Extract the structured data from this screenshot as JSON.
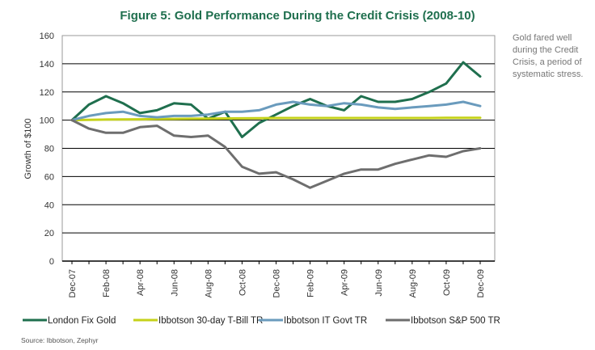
{
  "chart_data": {
    "type": "line",
    "title": "Figure 5: Gold Performance During the Credit Crisis (2008-10)",
    "ylabel": "Growth of $100",
    "xlabel": "",
    "ylim": [
      0,
      160
    ],
    "yticks": [
      0,
      20,
      40,
      60,
      80,
      100,
      120,
      140,
      160
    ],
    "x_tick_labels": [
      "Dec-07",
      "Feb-08",
      "Apr-08",
      "Jun-08",
      "Aug-08",
      "Oct-08",
      "Dec-08",
      "Feb-09",
      "Apr-09",
      "Jun-09",
      "Aug-09",
      "Oct-09",
      "Dec-09"
    ],
    "x": [
      "Dec-07",
      "Jan-08",
      "Feb-08",
      "Mar-08",
      "Apr-08",
      "May-08",
      "Jun-08",
      "Jul-08",
      "Aug-08",
      "Sep-08",
      "Oct-08",
      "Nov-08",
      "Dec-08",
      "Jan-09",
      "Feb-09",
      "Mar-09",
      "Apr-09",
      "May-09",
      "Jun-09",
      "Jul-09",
      "Aug-09",
      "Sep-09",
      "Oct-09",
      "Nov-09",
      "Dec-09"
    ],
    "grid": true,
    "legend_position": "bottom",
    "annotation": "Gold fared well during the Credit Crisis, a period of systematic stress.",
    "source": "Source: Ibbotson, Zephyr",
    "series": [
      {
        "name": "London Fix Gold",
        "color": "#1f6f4e",
        "values": [
          100,
          111,
          117,
          112,
          105,
          107,
          112,
          111,
          101,
          106,
          88,
          98,
          104,
          110,
          115,
          110,
          107,
          117,
          113,
          113,
          115,
          120,
          126,
          141,
          131
        ]
      },
      {
        "name": "Ibbotson 30-day T-Bill TR",
        "color": "#c5d21a",
        "values": [
          100,
          100.2,
          100.4,
          100.5,
          100.6,
          100.8,
          100.9,
          101,
          101.1,
          101.2,
          101.3,
          101.4,
          101.5,
          101.5,
          101.5,
          101.5,
          101.5,
          101.5,
          101.5,
          101.5,
          101.5,
          101.5,
          101.6,
          101.6,
          101.6
        ]
      },
      {
        "name": "Ibbotson IT Govt TR",
        "color": "#6a9bbd",
        "values": [
          100,
          103,
          105,
          106,
          103,
          102,
          103,
          103,
          104,
          106,
          106,
          107,
          111,
          113,
          111,
          110,
          112,
          111,
          109,
          108,
          109,
          110,
          111,
          113,
          110
        ]
      },
      {
        "name": "Ibbotson S&P 500 TR",
        "color": "#6e6e6e",
        "values": [
          100,
          94,
          91,
          91,
          95,
          96,
          89,
          88,
          89,
          81,
          67,
          62,
          63,
          58,
          52,
          57,
          62,
          65,
          65,
          69,
          72,
          75,
          74,
          78,
          80
        ]
      }
    ]
  }
}
